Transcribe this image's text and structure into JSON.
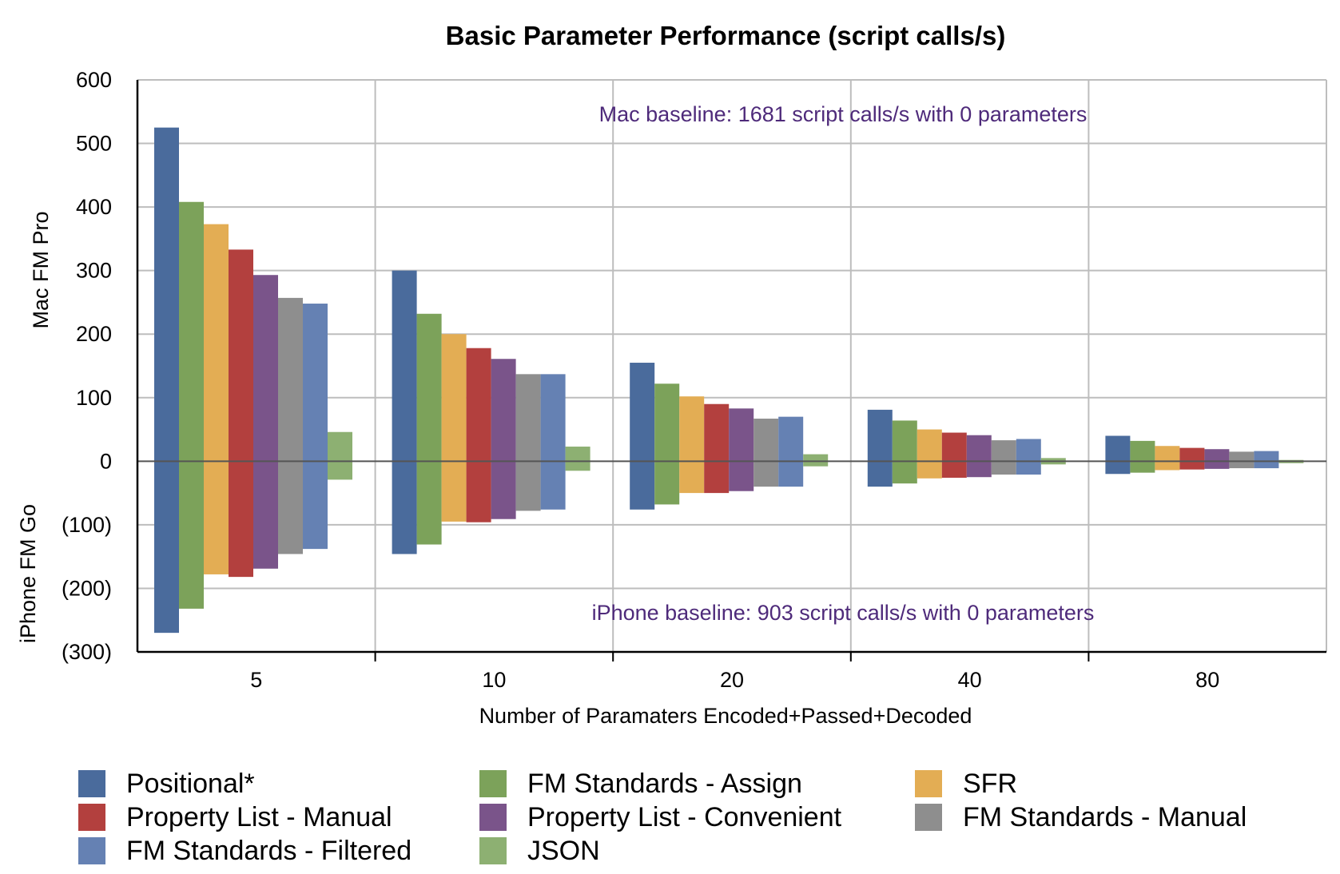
{
  "chart_data": {
    "type": "bar",
    "title": "Basic Parameter Performance (script calls/s)",
    "xlabel": "Number of Paramaters Encoded+Passed+Decoded",
    "ylabel_top": "Mac FM Pro",
    "ylabel_bottom": "iPhone FM Go",
    "ylim": [
      -300,
      600
    ],
    "yticks": [
      {
        "value": 600,
        "label": "600"
      },
      {
        "value": 500,
        "label": "500"
      },
      {
        "value": 400,
        "label": "400"
      },
      {
        "value": 300,
        "label": "300"
      },
      {
        "value": 200,
        "label": "200"
      },
      {
        "value": 100,
        "label": "100"
      },
      {
        "value": 0,
        "label": "0"
      },
      {
        "value": -100,
        "label": "(100)"
      },
      {
        "value": -200,
        "label": "(200)"
      },
      {
        "value": -300,
        "label": "(300)"
      }
    ],
    "categories": [
      "5",
      "10",
      "20",
      "40",
      "80"
    ],
    "grid": true,
    "legend_position": "bottom",
    "annotations": {
      "top": "Mac baseline: 1681 script calls/s with 0 parameters",
      "bottom": "iPhone baseline: 903 script calls/s with 0 parameters"
    },
    "series": [
      {
        "name": "Positional*",
        "color": "#4a6b9c",
        "mac": [
          525,
          300,
          155,
          81,
          40
        ],
        "iphone": [
          -270,
          -146,
          -76,
          -40,
          -20
        ]
      },
      {
        "name": "FM Standards - Assign",
        "color": "#7ca25a",
        "mac": [
          408,
          232,
          122,
          64,
          32
        ],
        "iphone": [
          -232,
          -131,
          -68,
          -35,
          -18
        ]
      },
      {
        "name": "SFR",
        "color": "#e3ad54",
        "mac": [
          373,
          200,
          102,
          50,
          24
        ],
        "iphone": [
          -178,
          -95,
          -50,
          -27,
          -14
        ]
      },
      {
        "name": "Property List - Manual",
        "color": "#b3403e",
        "mac": [
          333,
          178,
          90,
          45,
          21
        ],
        "iphone": [
          -182,
          -96,
          -50,
          -26,
          -13
        ]
      },
      {
        "name": "Property List - Convenient",
        "color": "#7a548a",
        "mac": [
          293,
          161,
          83,
          41,
          19
        ],
        "iphone": [
          -169,
          -91,
          -47,
          -25,
          -12
        ]
      },
      {
        "name": "FM Standards - Manual",
        "color": "#8e8e8e",
        "mac": [
          257,
          137,
          67,
          33,
          15
        ],
        "iphone": [
          -146,
          -78,
          -40,
          -21,
          -11
        ]
      },
      {
        "name": "FM Standards - Filtered",
        "color": "#6581b3",
        "mac": [
          248,
          137,
          70,
          35,
          16
        ],
        "iphone": [
          -138,
          -76,
          -40,
          -21,
          -11
        ]
      },
      {
        "name": "JSON",
        "color": "#8db072",
        "mac": [
          46,
          23,
          11,
          5,
          2
        ],
        "iphone": [
          -29,
          -15,
          -8,
          -5,
          -3
        ]
      }
    ]
  }
}
